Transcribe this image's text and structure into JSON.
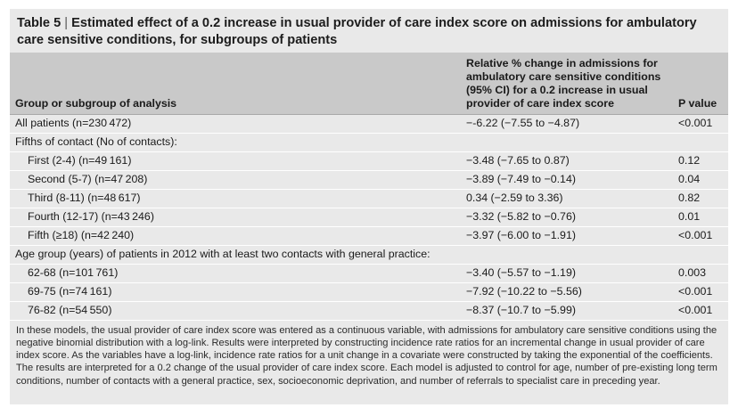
{
  "table": {
    "title_label": "Table 5",
    "title_sep": " | ",
    "title_text": "Estimated effect of a 0.2 increase in usual provider of care index score on admissions for ambulatory care sensitive conditions, for subgroups of patients",
    "columns": [
      "Group or subgroup of analysis",
      "Relative % change in admissions for ambulatory care sensitive conditions (95% CI) for a 0.2 increase in usual provider of care index score",
      "P value"
    ],
    "rows": [
      {
        "label": "All patients (n=230 472)",
        "change": "−-6.22 (−7.55 to −4.87)",
        "p": "<0.001"
      },
      {
        "label": "Fifths of contact (No of contacts):",
        "change": "",
        "p": ""
      },
      {
        "label": "First (2-4) (n=49 161)",
        "change": "−3.48 (−7.65 to 0.87)",
        "p": "0.12"
      },
      {
        "label": "Second (5-7) (n=47 208)",
        "change": "−3.89 (−7.49 to −0.14)",
        "p": "0.04"
      },
      {
        "label": "Third (8-11) (n=48 617)",
        "change": "0.34 (−2.59 to 3.36)",
        "p": "0.82"
      },
      {
        "label": "Fourth (12-17) (n=43 246)",
        "change": "−3.32 (−5.82 to −0.76)",
        "p": "0.01"
      },
      {
        "label": "Fifth (≥18) (n=42 240)",
        "change": "−3.97 (−6.00 to −1.91)",
        "p": "<0.001"
      },
      {
        "label": "Age group (years) of patients in 2012 with at least two contacts with general practice:",
        "change": "",
        "p": ""
      },
      {
        "label": "62-68 (n=101 761)",
        "change": "−3.40 (−5.57 to −1.19)",
        "p": "0.003"
      },
      {
        "label": "69-75 (n=74 161)",
        "change": "−7.92 (−10.22 to −5.56)",
        "p": "<0.001"
      },
      {
        "label": "76-82 (n=54 550)",
        "change": "−8.37 (−10.7 to −5.99)",
        "p": "<0.001"
      }
    ],
    "footnote": "In these models, the usual provider of care index score was entered as a continuous variable, with admissions for ambulatory care sensitive conditions using the negative binomial distribution with a log-link. Results were interpreted by constructing incidence rate ratios for an incremental change in usual provider of care index score. As the variables have a log-link, incidence rate ratios for a unit change in a covariate were constructed by taking the exponential of the coefficients. The results are interpreted for a 0.2 change of the usual provider of care index score. Each model is adjusted to control for age, number of pre-existing long term conditions, number of contacts with a general practice, sex, socioeconomic deprivation, and number of referrals to specialist care in preceding year."
  }
}
